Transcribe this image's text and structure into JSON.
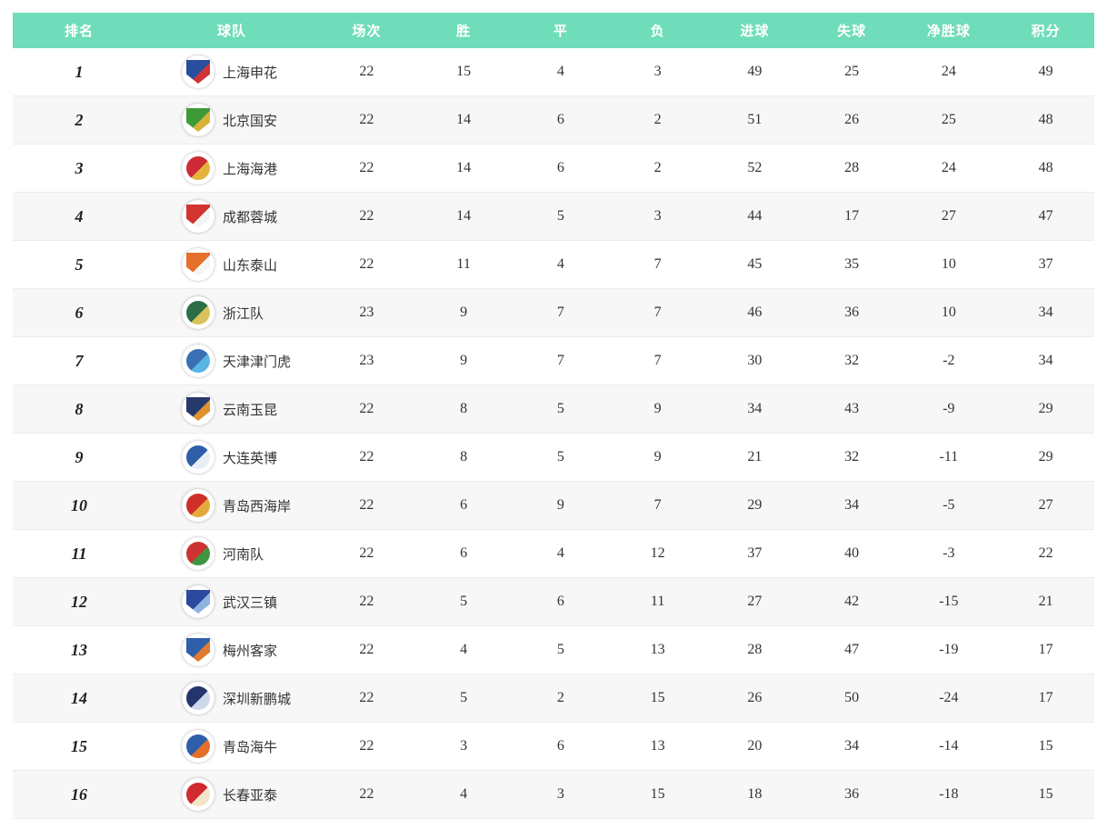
{
  "colors": {
    "header_bg": "#6fdcba",
    "header_text": "#ffffff",
    "row_bg": "#ffffff",
    "row_alt_bg": "#f7f7f7",
    "row_border": "#ececec",
    "cell_text": "#333333"
  },
  "table": {
    "columns": [
      {
        "key": "rank",
        "label": "排名"
      },
      {
        "key": "team",
        "label": "球队"
      },
      {
        "key": "played",
        "label": "场次"
      },
      {
        "key": "win",
        "label": "胜"
      },
      {
        "key": "draw",
        "label": "平"
      },
      {
        "key": "loss",
        "label": "负"
      },
      {
        "key": "goals_for",
        "label": "进球"
      },
      {
        "key": "goals_against",
        "label": "失球"
      },
      {
        "key": "goal_diff",
        "label": "净胜球"
      },
      {
        "key": "points",
        "label": "积分"
      }
    ],
    "rows": [
      {
        "rank": "1",
        "team": "上海申花",
        "played": "22",
        "win": "15",
        "draw": "4",
        "loss": "3",
        "goals_for": "49",
        "goals_against": "25",
        "goal_diff": "24",
        "points": "49",
        "logo": {
          "shape": "shield",
          "primary": "#2a4e9e",
          "secondary": "#cf3339"
        }
      },
      {
        "rank": "2",
        "team": "北京国安",
        "played": "22",
        "win": "14",
        "draw": "6",
        "loss": "2",
        "goals_for": "51",
        "goals_against": "26",
        "goal_diff": "25",
        "points": "48",
        "logo": {
          "shape": "shield",
          "primary": "#3d9b35",
          "secondary": "#d9b23a"
        }
      },
      {
        "rank": "3",
        "team": "上海海港",
        "played": "22",
        "win": "14",
        "draw": "6",
        "loss": "2",
        "goals_for": "52",
        "goals_against": "28",
        "goal_diff": "24",
        "points": "48",
        "logo": {
          "shape": "circle",
          "primary": "#ce2b37",
          "secondary": "#e4b33c"
        }
      },
      {
        "rank": "4",
        "team": "成都蓉城",
        "played": "22",
        "win": "14",
        "draw": "5",
        "loss": "3",
        "goals_for": "44",
        "goals_against": "17",
        "goal_diff": "27",
        "points": "47",
        "logo": {
          "shape": "shield",
          "primary": "#d23430",
          "secondary": "#f4f4f4"
        }
      },
      {
        "rank": "5",
        "team": "山东泰山",
        "played": "22",
        "win": "11",
        "draw": "4",
        "loss": "7",
        "goals_for": "45",
        "goals_against": "35",
        "goal_diff": "10",
        "points": "37",
        "logo": {
          "shape": "shield",
          "primary": "#e4702a",
          "secondary": "#f5f5f5"
        }
      },
      {
        "rank": "6",
        "team": "浙江队",
        "played": "23",
        "win": "9",
        "draw": "7",
        "loss": "7",
        "goals_for": "46",
        "goals_against": "36",
        "goal_diff": "10",
        "points": "34",
        "logo": {
          "shape": "circle",
          "primary": "#2b6e46",
          "secondary": "#d8c25a"
        }
      },
      {
        "rank": "7",
        "team": "天津津门虎",
        "played": "23",
        "win": "9",
        "draw": "7",
        "loss": "7",
        "goals_for": "30",
        "goals_against": "32",
        "goal_diff": "-2",
        "points": "34",
        "logo": {
          "shape": "circle",
          "primary": "#3a6fb5",
          "secondary": "#58b6e4"
        }
      },
      {
        "rank": "8",
        "team": "云南玉昆",
        "played": "22",
        "win": "8",
        "draw": "5",
        "loss": "9",
        "goals_for": "34",
        "goals_against": "43",
        "goal_diff": "-9",
        "points": "29",
        "logo": {
          "shape": "shield",
          "primary": "#27396b",
          "secondary": "#e0912f"
        }
      },
      {
        "rank": "9",
        "team": "大连英博",
        "played": "22",
        "win": "8",
        "draw": "5",
        "loss": "9",
        "goals_for": "21",
        "goals_against": "32",
        "goal_diff": "-11",
        "points": "29",
        "logo": {
          "shape": "circle",
          "primary": "#2e5ea8",
          "secondary": "#e8eef5"
        }
      },
      {
        "rank": "10",
        "team": "青岛西海岸",
        "played": "22",
        "win": "6",
        "draw": "9",
        "loss": "7",
        "goals_for": "29",
        "goals_against": "34",
        "goal_diff": "-5",
        "points": "27",
        "logo": {
          "shape": "circle",
          "primary": "#cf2f28",
          "secondary": "#e2a93b"
        }
      },
      {
        "rank": "11",
        "team": "河南队",
        "played": "22",
        "win": "6",
        "draw": "4",
        "loss": "12",
        "goals_for": "37",
        "goals_against": "40",
        "goal_diff": "-3",
        "points": "22",
        "logo": {
          "shape": "circle",
          "primary": "#cd3333",
          "secondary": "#3f9440"
        }
      },
      {
        "rank": "12",
        "team": "武汉三镇",
        "played": "22",
        "win": "5",
        "draw": "6",
        "loss": "11",
        "goals_for": "27",
        "goals_against": "42",
        "goal_diff": "-15",
        "points": "21",
        "logo": {
          "shape": "shield",
          "primary": "#2b4a9e",
          "secondary": "#8fb3e0"
        }
      },
      {
        "rank": "13",
        "team": "梅州客家",
        "played": "22",
        "win": "4",
        "draw": "5",
        "loss": "13",
        "goals_for": "28",
        "goals_against": "47",
        "goal_diff": "-19",
        "points": "17",
        "logo": {
          "shape": "shield",
          "primary": "#2f5fa8",
          "secondary": "#e07a2c"
        }
      },
      {
        "rank": "14",
        "team": "深圳新鹏城",
        "played": "22",
        "win": "5",
        "draw": "2",
        "loss": "15",
        "goals_for": "26",
        "goals_against": "50",
        "goal_diff": "-24",
        "points": "17",
        "logo": {
          "shape": "circle",
          "primary": "#24356e",
          "secondary": "#cfd8ea"
        }
      },
      {
        "rank": "15",
        "team": "青岛海牛",
        "played": "22",
        "win": "3",
        "draw": "6",
        "loss": "13",
        "goals_for": "20",
        "goals_against": "34",
        "goal_diff": "-14",
        "points": "15",
        "logo": {
          "shape": "circle",
          "primary": "#2f5fa8",
          "secondary": "#e2702a"
        }
      },
      {
        "rank": "16",
        "team": "长春亚泰",
        "played": "22",
        "win": "4",
        "draw": "3",
        "loss": "15",
        "goals_for": "18",
        "goals_against": "36",
        "goal_diff": "-18",
        "points": "15",
        "logo": {
          "shape": "circle",
          "primary": "#d02a31",
          "secondary": "#f2e6c8"
        }
      }
    ]
  }
}
